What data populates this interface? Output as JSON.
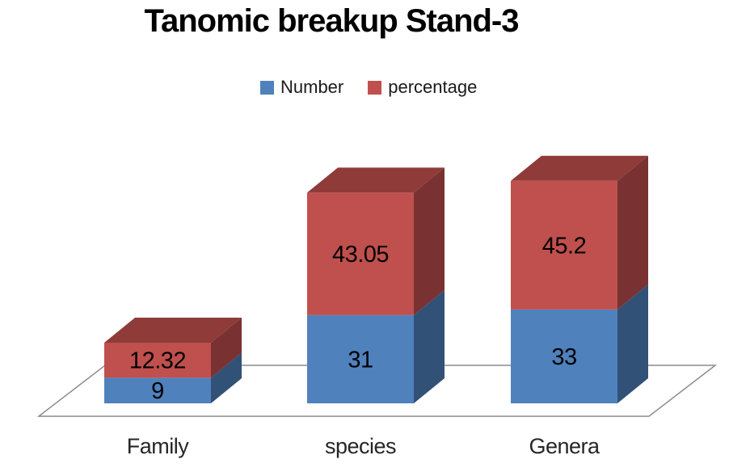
{
  "title": "Tanomic breakup Stand-3",
  "legend": [
    {
      "label": "Number",
      "color": "#4F81BD"
    },
    {
      "label": "percentage",
      "color": "#C0504D"
    }
  ],
  "chart_data": {
    "type": "bar",
    "subtype": "3d-stacked-column",
    "title": "Tanomic breakup Stand-3",
    "categories": [
      "Family",
      "species",
      "Genera"
    ],
    "series": [
      {
        "name": "Number",
        "color": "#4F81BD",
        "values": [
          9,
          31,
          33
        ]
      },
      {
        "name": "percentage",
        "color": "#C0504D",
        "values": [
          12.32,
          43.05,
          45.2
        ]
      }
    ],
    "stack_totals": [
      21.32,
      74.05,
      78.2
    ],
    "data_labels": true,
    "legend_position": "top",
    "axes_visible": false,
    "gridlines": false,
    "floor_outline_color": "#8C8C8C",
    "data_label_color": "#000000",
    "category_label_color": "#262626",
    "background": "#FFFFFF",
    "xlabel": "",
    "ylabel": ""
  }
}
